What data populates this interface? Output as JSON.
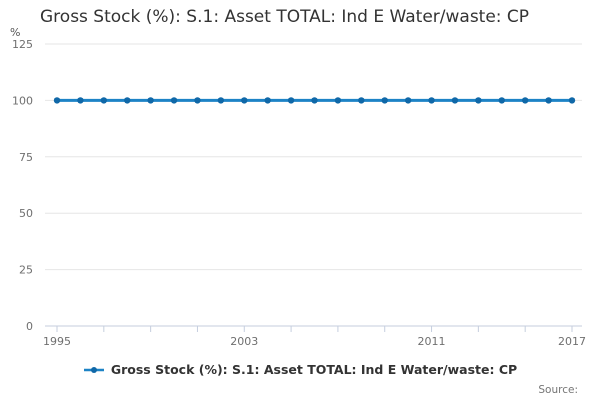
{
  "title": "Gross Stock (%): S.1: Asset TOTAL: Ind E Water/waste: CP",
  "y_unit_label": "%",
  "source_label": "Source:",
  "colors": {
    "line": "#1d83c6",
    "marker": "#1068a8",
    "gridline": "#e6e6e6",
    "axis": "#c5cede",
    "tick_text": "#6f6f6f",
    "title_text": "#333333",
    "legend_text": "#333333",
    "source_text": "#757575"
  },
  "chart_data": {
    "type": "line",
    "title": "Gross Stock (%): S.1: Asset TOTAL: Ind E Water/waste: CP",
    "xlabel": "",
    "ylabel": "%",
    "x": [
      1995,
      1996,
      1997,
      1998,
      1999,
      2000,
      2001,
      2002,
      2003,
      2004,
      2005,
      2006,
      2007,
      2008,
      2009,
      2010,
      2011,
      2012,
      2013,
      2014,
      2015,
      2016,
      2017
    ],
    "series": [
      {
        "name": "Gross Stock (%): S.1: Asset TOTAL: Ind E Water/waste: CP",
        "values": [
          100,
          100,
          100,
          100,
          100,
          100,
          100,
          100,
          100,
          100,
          100,
          100,
          100,
          100,
          100,
          100,
          100,
          100,
          100,
          100,
          100,
          100,
          100
        ]
      }
    ],
    "ylim": [
      0,
      125
    ],
    "yticks": [
      0,
      25,
      50,
      75,
      100,
      125
    ],
    "xtick_labels": [
      1995,
      2003,
      2011,
      2017
    ],
    "xtick_minor_step": 2,
    "grid": true,
    "legend_position": "bottom"
  }
}
